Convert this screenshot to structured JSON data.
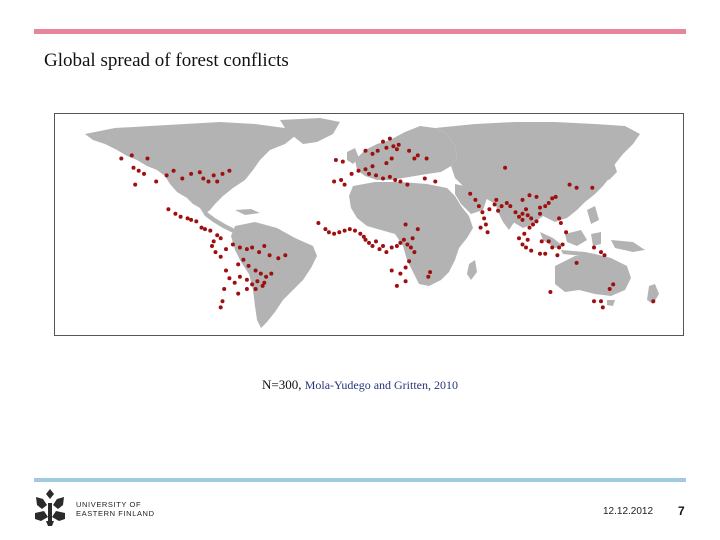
{
  "slide": {
    "title": "Global spread of forest conflicts",
    "caption_n": "N=300, ",
    "caption_source": "Mola-Yudego and Gritten, 2010",
    "university_line1": "UNIVERSITY OF",
    "university_line2": "EASTERN FINLAND",
    "date": "12.12.2012",
    "page_number": "7"
  },
  "colors": {
    "top_rule": "#e8859a",
    "bottom_rule": "#9fcadf",
    "land": "#b3b3b3",
    "conflict_marker": "#9e0f0f",
    "logo": "#2b2b2b"
  },
  "map": {
    "land_color": "#b3b3b3",
    "marker_color": "#9e0f0f",
    "conflict_points": [
      [
        -123,
        49
      ],
      [
        -120,
        47
      ],
      [
        -117,
        45
      ],
      [
        -122,
        38
      ],
      [
        -110,
        40
      ],
      [
        -104,
        44
      ],
      [
        -100,
        47
      ],
      [
        -95,
        42
      ],
      [
        -90,
        45
      ],
      [
        -85,
        46
      ],
      [
        -83,
        42
      ],
      [
        -80,
        40
      ],
      [
        -77,
        44
      ],
      [
        -72,
        45
      ],
      [
        -68,
        47
      ],
      [
        -75,
        40
      ],
      [
        -130,
        55
      ],
      [
        -124,
        57
      ],
      [
        -115,
        55
      ],
      [
        -103,
        22
      ],
      [
        -99,
        19
      ],
      [
        -96,
        17
      ],
      [
        -92,
        16
      ],
      [
        -90,
        15
      ],
      [
        -87,
        14
      ],
      [
        -84,
        10
      ],
      [
        -82,
        9
      ],
      [
        -79,
        8
      ],
      [
        -75,
        5
      ],
      [
        -73,
        3
      ],
      [
        -77,
        1
      ],
      [
        -78,
        -2
      ],
      [
        -76,
        -6
      ],
      [
        -73,
        -9
      ],
      [
        -70,
        -4
      ],
      [
        -66,
        -1
      ],
      [
        -62,
        -3
      ],
      [
        -58,
        -4
      ],
      [
        -55,
        -3
      ],
      [
        -51,
        -6
      ],
      [
        -48,
        -2
      ],
      [
        -45,
        -8
      ],
      [
        -40,
        -10
      ],
      [
        -36,
        -8
      ],
      [
        -60,
        -11
      ],
      [
        -63,
        -14
      ],
      [
        -57,
        -15
      ],
      [
        -53,
        -18
      ],
      [
        -50,
        -20
      ],
      [
        -47,
        -22
      ],
      [
        -44,
        -20
      ],
      [
        -48,
        -26
      ],
      [
        -52,
        -25
      ],
      [
        -55,
        -27
      ],
      [
        -58,
        -24
      ],
      [
        -62,
        -22
      ],
      [
        -65,
        -26
      ],
      [
        -68,
        -23
      ],
      [
        -70,
        -18
      ],
      [
        -71,
        -30
      ],
      [
        -72,
        -38
      ],
      [
        -73,
        -42
      ],
      [
        -63,
        -33
      ],
      [
        -58,
        -30
      ],
      [
        -53,
        -30
      ],
      [
        -49,
        -28
      ],
      [
        -17,
        13
      ],
      [
        -13,
        9
      ],
      [
        -11,
        7
      ],
      [
        -8,
        6
      ],
      [
        -5,
        7
      ],
      [
        -2,
        8
      ],
      [
        1,
        9
      ],
      [
        4,
        8
      ],
      [
        7,
        6
      ],
      [
        9,
        4
      ],
      [
        10,
        2
      ],
      [
        12,
        0
      ],
      [
        14,
        -2
      ],
      [
        16,
        1
      ],
      [
        18,
        -4
      ],
      [
        20,
        -2
      ],
      [
        22,
        -6
      ],
      [
        25,
        -3
      ],
      [
        28,
        -2
      ],
      [
        30,
        0
      ],
      [
        32,
        2
      ],
      [
        34,
        -1
      ],
      [
        36,
        -3
      ],
      [
        38,
        -6
      ],
      [
        37,
        3
      ],
      [
        40,
        9
      ],
      [
        33,
        12
      ],
      [
        35,
        -12
      ],
      [
        33,
        -16
      ],
      [
        30,
        -20
      ],
      [
        33,
        -25
      ],
      [
        28,
        -28
      ],
      [
        25,
        -18
      ],
      [
        47,
        -19
      ],
      [
        46,
        -22
      ],
      [
        -8,
        40
      ],
      [
        -4,
        41
      ],
      [
        -2,
        38
      ],
      [
        2,
        45
      ],
      [
        6,
        47
      ],
      [
        10,
        48
      ],
      [
        14,
        50
      ],
      [
        12,
        45
      ],
      [
        16,
        44
      ],
      [
        20,
        42
      ],
      [
        24,
        43
      ],
      [
        27,
        41
      ],
      [
        30,
        40
      ],
      [
        34,
        38
      ],
      [
        22,
        52
      ],
      [
        25,
        55
      ],
      [
        10,
        60
      ],
      [
        14,
        58
      ],
      [
        17,
        60
      ],
      [
        22,
        62
      ],
      [
        26,
        63
      ],
      [
        29,
        64
      ],
      [
        20,
        66
      ],
      [
        24,
        68
      ],
      [
        28,
        61
      ],
      [
        35,
        60
      ],
      [
        40,
        57
      ],
      [
        38,
        55
      ],
      [
        45,
        55
      ],
      [
        -3,
        53
      ],
      [
        -7,
        54
      ],
      [
        44,
        42
      ],
      [
        50,
        40
      ],
      [
        70,
        32
      ],
      [
        73,
        28
      ],
      [
        75,
        24
      ],
      [
        77,
        20
      ],
      [
        78,
        16
      ],
      [
        79,
        12
      ],
      [
        76,
        10
      ],
      [
        81,
        22
      ],
      [
        84,
        25
      ],
      [
        86,
        21
      ],
      [
        88,
        24
      ],
      [
        91,
        26
      ],
      [
        93,
        24
      ],
      [
        96,
        20
      ],
      [
        98,
        17
      ],
      [
        100,
        15
      ],
      [
        100,
        19
      ],
      [
        102,
        22
      ],
      [
        103,
        18
      ],
      [
        105,
        16
      ],
      [
        106,
        12
      ],
      [
        104,
        10
      ],
      [
        108,
        14
      ],
      [
        110,
        19
      ],
      [
        110,
        23
      ],
      [
        113,
        24
      ],
      [
        115,
        26
      ],
      [
        117,
        29
      ],
      [
        119,
        30
      ],
      [
        108,
        30
      ],
      [
        104,
        31
      ],
      [
        100,
        28
      ],
      [
        101,
        6
      ],
      [
        103,
        2
      ],
      [
        98,
        3
      ],
      [
        100,
        -1
      ],
      [
        102,
        -3
      ],
      [
        105,
        -5
      ],
      [
        110,
        -7
      ],
      [
        113,
        -7
      ],
      [
        117,
        -3
      ],
      [
        115,
        1
      ],
      [
        111,
        1
      ],
      [
        121,
        -3
      ],
      [
        120,
        -8
      ],
      [
        123,
        -1
      ],
      [
        125,
        7
      ],
      [
        122,
        13
      ],
      [
        121,
        16
      ],
      [
        127,
        38
      ],
      [
        131,
        36
      ],
      [
        140,
        36
      ],
      [
        141,
        -3
      ],
      [
        145,
        -6
      ],
      [
        147,
        -8
      ],
      [
        80,
        7
      ],
      [
        85,
        28
      ],
      [
        90,
        49
      ],
      [
        116,
        -32
      ],
      [
        141,
        -38
      ],
      [
        145,
        -38
      ],
      [
        150,
        -30
      ],
      [
        152,
        -27
      ],
      [
        146,
        -42
      ],
      [
        131,
        -13
      ],
      [
        175,
        -38
      ]
    ]
  }
}
